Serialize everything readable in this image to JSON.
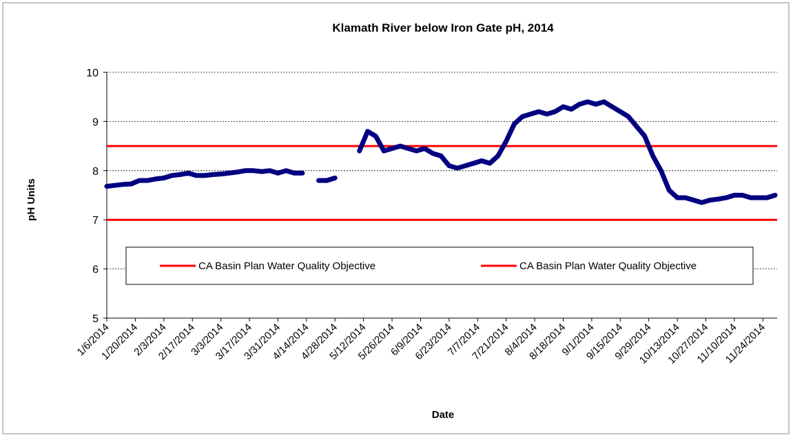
{
  "chart_data": {
    "type": "line",
    "title": "Klamath River below Iron Gate pH, 2014",
    "x_label": "Date",
    "y_label": "pH Units",
    "x": [
      "1/6/2014",
      "1/10/2014",
      "1/14/2014",
      "1/18/2014",
      "1/22/2014",
      "1/26/2014",
      "1/30/2014",
      "2/3/2014",
      "2/7/2014",
      "2/11/2014",
      "2/15/2014",
      "2/19/2014",
      "2/23/2014",
      "2/27/2014",
      "3/3/2014",
      "3/7/2014",
      "3/11/2014",
      "3/15/2014",
      "3/19/2014",
      "3/23/2014",
      "3/27/2014",
      "3/31/2014",
      "4/4/2014",
      "4/8/2014",
      "4/12/2014",
      "4/16/2014",
      "4/20/2014",
      "4/24/2014",
      "4/28/2014",
      "5/2/2014",
      "5/6/2014",
      "5/10/2014",
      "5/14/2014",
      "5/18/2014",
      "5/22/2014",
      "5/26/2014",
      "5/30/2014",
      "6/3/2014",
      "6/7/2014",
      "6/11/2014",
      "6/15/2014",
      "6/19/2014",
      "6/23/2014",
      "6/27/2014",
      "7/1/2014",
      "7/5/2014",
      "7/9/2014",
      "7/13/2014",
      "7/17/2014",
      "7/21/2014",
      "7/25/2014",
      "7/29/2014",
      "8/2/2014",
      "8/6/2014",
      "8/10/2014",
      "8/14/2014",
      "8/18/2014",
      "8/22/2014",
      "8/26/2014",
      "8/30/2014",
      "9/3/2014",
      "9/7/2014",
      "9/11/2014",
      "9/15/2014",
      "9/19/2014",
      "9/23/2014",
      "9/27/2014",
      "10/1/2014",
      "10/5/2014",
      "10/9/2014",
      "10/13/2014",
      "10/17/2014",
      "10/21/2014",
      "10/25/2014",
      "10/29/2014",
      "11/2/2014",
      "11/6/2014",
      "11/10/2014",
      "11/14/2014",
      "11/18/2014",
      "11/22/2014",
      "11/26/2014",
      "11/30/2014"
    ],
    "series": [
      {
        "color": "#000080",
        "values": [
          7.68,
          7.7,
          7.72,
          7.73,
          7.8,
          7.8,
          7.83,
          7.85,
          7.9,
          7.92,
          7.95,
          7.9,
          7.9,
          7.92,
          7.93,
          7.95,
          7.97,
          8.0,
          8.0,
          7.98,
          8.0,
          7.95,
          8.0,
          7.95,
          7.95,
          null,
          7.8,
          7.8,
          7.85,
          null,
          null,
          8.4,
          8.8,
          8.7,
          8.4,
          8.45,
          8.5,
          8.45,
          8.4,
          8.45,
          8.35,
          8.3,
          8.1,
          8.05,
          8.1,
          8.15,
          8.2,
          8.15,
          8.3,
          8.6,
          8.95,
          9.1,
          9.15,
          9.2,
          9.15,
          9.2,
          9.3,
          9.25,
          9.35,
          9.4,
          9.35,
          9.4,
          9.3,
          9.2,
          9.1,
          8.9,
          8.7,
          8.3,
          8.0,
          7.6,
          7.45,
          7.45,
          7.4,
          7.35,
          7.4,
          7.42,
          7.45,
          7.5,
          7.5,
          7.45,
          7.45,
          7.45,
          7.5
        ]
      }
    ],
    "reference_lines": [
      {
        "name": "CA Basin Plan Water Quality Objective",
        "value": 8.5,
        "color": "#ff0000"
      },
      {
        "name": "CA Basin Plan Water Quality Objective",
        "value": 7,
        "color": "#ff0000"
      }
    ],
    "xlim": [
      "1/6/2014",
      "12/1/2014"
    ],
    "xticks": [
      "1/6/2014",
      "1/20/2014",
      "2/3/2014",
      "2/17/2014",
      "3/3/2014",
      "3/17/2014",
      "3/31/2014",
      "4/14/2014",
      "4/28/2014",
      "5/12/2014",
      "5/26/2014",
      "6/9/2014",
      "6/23/2014",
      "7/7/2014",
      "7/21/2014",
      "8/4/2014",
      "8/18/2014",
      "9/1/2014",
      "9/15/2014",
      "9/29/2014",
      "10/13/2014",
      "10/27/2014",
      "11/10/2014",
      "11/24/2014"
    ],
    "ylim": [
      5,
      10
    ],
    "yticks": [
      5,
      6,
      7,
      8,
      9,
      10
    ],
    "grid": true
  }
}
